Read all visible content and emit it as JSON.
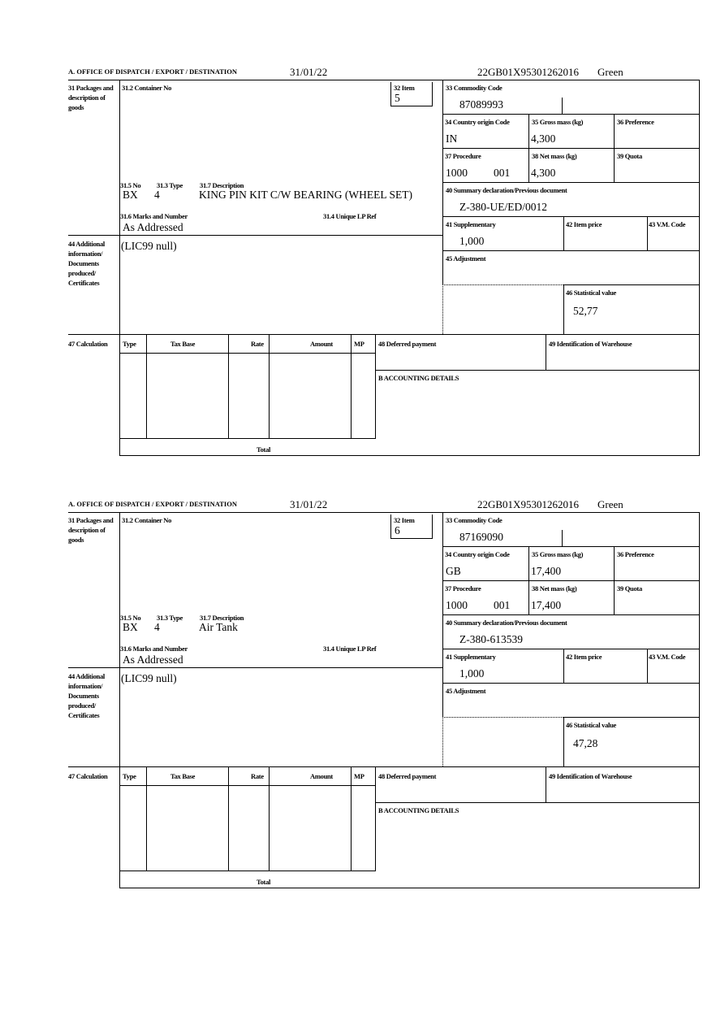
{
  "labels": {
    "office": "A.  OFFICE OF DISPATCH / EXPORT / DESTINATION",
    "packages": "31 Packages and description of goods",
    "container": "31.2 Container No",
    "item": "32 Item",
    "commodity": "33 Commodity Code",
    "country": "34 Country origin Code",
    "gross": "35 Gross mass (kg)",
    "preference": "36 Preference",
    "procedure": "37 Procedure",
    "net": "38 Net mass (kg)",
    "quota": "39 Quota",
    "summary": "40 Summary declaration/Previous document",
    "no": "31.5 No",
    "type": "31.3 Type",
    "description": "31.7 Description",
    "marks": "31.6 Marks and Number",
    "unique": "31.4 Unique LP Ref",
    "supplementary": "41 Supplementary",
    "item_price": "42 Item price",
    "vm_code": "43 V.M. Code",
    "additional": "44 Additional information/ Documents produced/ Certificates",
    "adjustment": "45 Adjustment",
    "statistical": "46 Statistical value",
    "calculation": "47 Calculation",
    "col_type": "Type",
    "col_tax_base": "Tax Base",
    "col_rate": "Rate",
    "col_amount": "Amount",
    "col_mp": "MP",
    "deferred": "48 Deferred payment",
    "warehouse": "49 Identification of Warehouse",
    "accounting": "B ACCOUNTING DETAILS",
    "total": "Total"
  },
  "forms": [
    {
      "date": "31/01/22",
      "reference": "22GB01X95301262016",
      "route": "Green",
      "item": "5",
      "commodity_code": "87089993",
      "country_origin": "IN",
      "gross_mass": "4,300",
      "procedure_1": "1000",
      "procedure_2": "001",
      "net_mass": "4,300",
      "previous_document": "Z-380-UE/ED/0012",
      "package_no": "BX",
      "package_type": "4",
      "description": "KING PIN KIT C/W BEARING (WHEEL SET)",
      "marks": "As Addressed",
      "supplementary": "1,000",
      "additional_info": "(LIC99 null)",
      "statistical_value": "52,77"
    },
    {
      "date": "31/01/22",
      "reference": "22GB01X95301262016",
      "route": "Green",
      "item": "6",
      "commodity_code": "87169090",
      "country_origin": "GB",
      "gross_mass": "17,400",
      "procedure_1": "1000",
      "procedure_2": "001",
      "net_mass": "17,400",
      "previous_document": "Z-380-613539",
      "package_no": "BX",
      "package_type": "4",
      "description": "Air Tank",
      "marks": "As Addressed",
      "supplementary": "1,000",
      "additional_info": "(LIC99 null)",
      "statistical_value": "47,28"
    }
  ]
}
